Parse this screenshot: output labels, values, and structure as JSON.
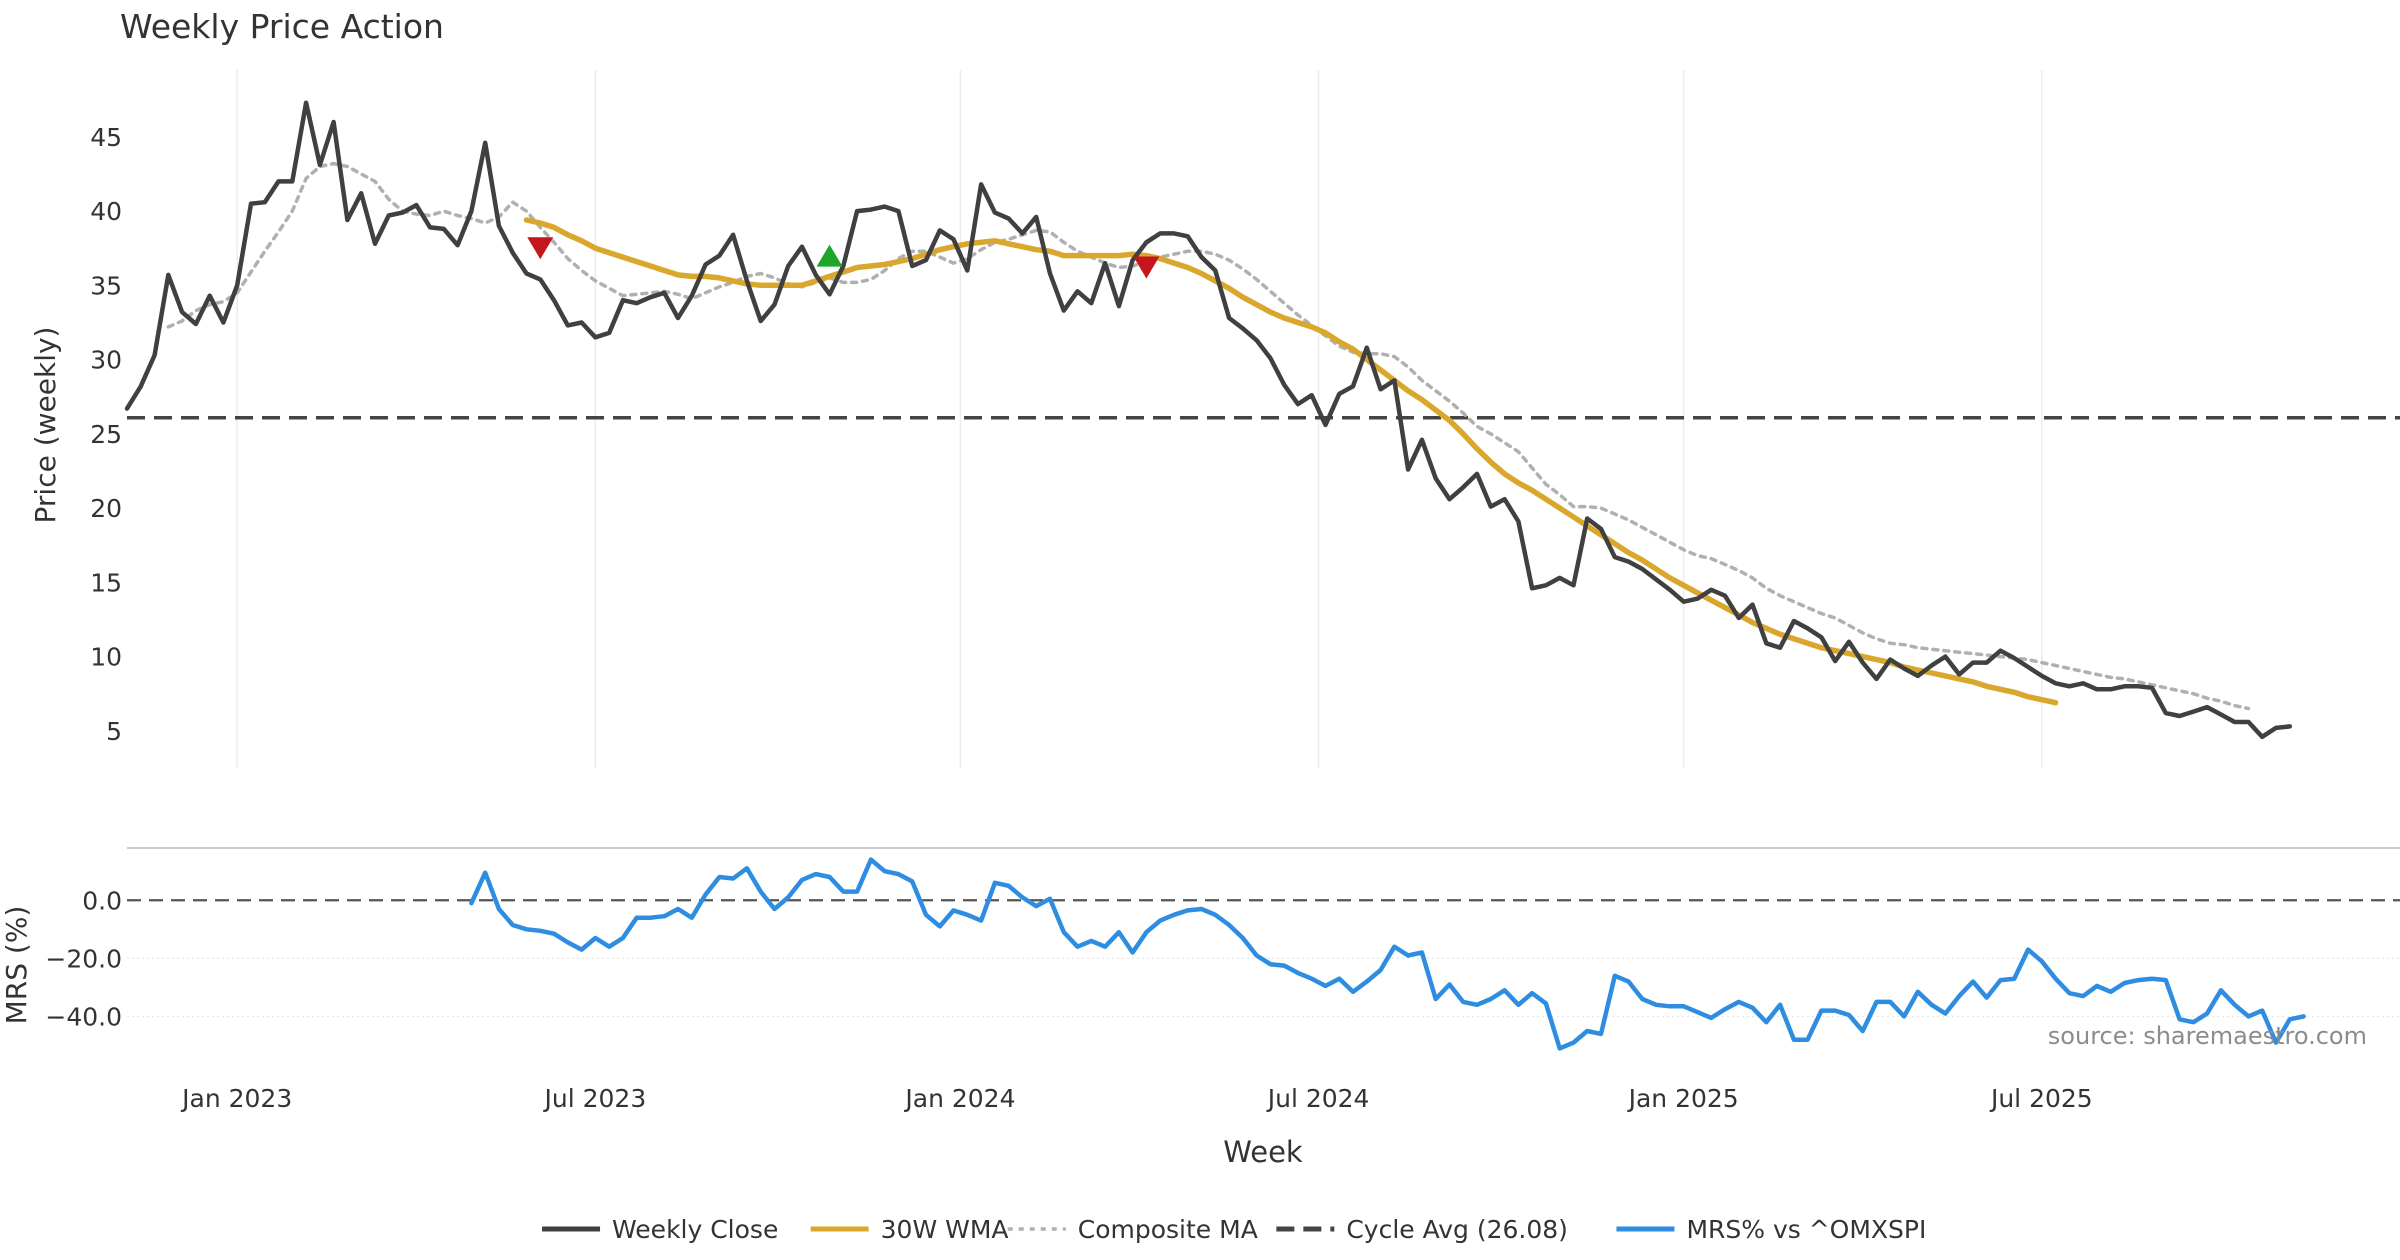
{
  "chart_data": [
    {
      "type": "line",
      "panel": "price",
      "title": "Weekly Price Action",
      "ylabel": "Price (weekly)",
      "ylim": [
        2.5,
        49.5
      ],
      "yticks": [
        "5",
        "10",
        "15",
        "20",
        "25",
        "30",
        "35",
        "40",
        "45"
      ],
      "ytick_values": [
        5,
        10,
        15,
        20,
        25,
        30,
        35,
        40,
        45
      ],
      "x_start_week": -10,
      "x_end_week": 155,
      "series": [
        {
          "name": "Weekly Close",
          "color": "#404040",
          "start_week": -10,
          "values": [
            26.7,
            28.2,
            30.3,
            35.7,
            33.2,
            32.4,
            34.3,
            32.5,
            35.0,
            40.5,
            40.6,
            42.0,
            42.0,
            47.3,
            43.1,
            46.0,
            39.4,
            41.2,
            37.8,
            39.7,
            39.9,
            40.4,
            38.9,
            38.8,
            37.7,
            40.0,
            44.6,
            39.0,
            37.2,
            35.8,
            35.4,
            34.0,
            32.3,
            32.5,
            31.5,
            31.8,
            34.0,
            33.8,
            34.2,
            34.5,
            32.8,
            34.3,
            36.4,
            37.0,
            38.4,
            35.3,
            32.6,
            33.7,
            36.3,
            37.6,
            35.7,
            34.4,
            36.3,
            40.0,
            40.1,
            40.3,
            40.0,
            36.3,
            36.7,
            38.7,
            38.1,
            36.0,
            41.8,
            39.9,
            39.5,
            38.5,
            39.6,
            35.8,
            33.3,
            34.6,
            33.8,
            36.5,
            33.6,
            36.7,
            37.9,
            38.5,
            38.5,
            38.3,
            36.9,
            36.0,
            32.8,
            32.1,
            31.3,
            30.1,
            28.3,
            27.0,
            27.6,
            25.6,
            27.7,
            28.2,
            30.8,
            28.0,
            28.6,
            22.6,
            24.6,
            22.0,
            20.6,
            21.4,
            22.3,
            20.1,
            20.6,
            19.1,
            14.6,
            14.8,
            15.3,
            14.8,
            19.3,
            18.6,
            16.7,
            16.4,
            15.9,
            15.2,
            14.5,
            13.7,
            13.9,
            14.5,
            14.1,
            12.6,
            13.5,
            10.9,
            10.6,
            12.4,
            11.9,
            11.3,
            9.7,
            11.0,
            9.6,
            8.5,
            9.8,
            9.2,
            8.7,
            9.4,
            10.0,
            8.8,
            9.6,
            9.6,
            10.4,
            9.9,
            9.3,
            8.7,
            8.2,
            8.0,
            8.2,
            7.8,
            7.8,
            8.0,
            8.0,
            7.9,
            6.2,
            6.0,
            6.3,
            6.6,
            6.1,
            5.6,
            5.6,
            4.6,
            5.2,
            5.3
          ]
        },
        {
          "name": "30W WMA",
          "color": "#d9a72c",
          "start_week": 19,
          "values": [
            39.4,
            39.2,
            38.9,
            38.4,
            38.0,
            37.5,
            37.2,
            36.9,
            36.6,
            36.3,
            36.0,
            35.7,
            35.6,
            35.6,
            35.5,
            35.3,
            35.1,
            35.0,
            35.0,
            35.0,
            35.0,
            35.3,
            35.6,
            35.9,
            36.2,
            36.3,
            36.4,
            36.6,
            36.8,
            37.1,
            37.4,
            37.6,
            37.8,
            37.9,
            38.0,
            37.8,
            37.6,
            37.4,
            37.3,
            37.0,
            37.0,
            37.0,
            37.0,
            37.0,
            37.1,
            37.0,
            36.8,
            36.5,
            36.2,
            35.8,
            35.3,
            34.8,
            34.2,
            33.7,
            33.2,
            32.8,
            32.5,
            32.2,
            31.8,
            31.2,
            30.7,
            30.0,
            29.3,
            28.6,
            27.9,
            27.3,
            26.6,
            25.9,
            25.0,
            24.0,
            23.1,
            22.3,
            21.7,
            21.2,
            20.6,
            20.0,
            19.4,
            18.8,
            18.2,
            17.6,
            17.0,
            16.5,
            15.9,
            15.3,
            14.8,
            14.3,
            13.8,
            13.3,
            12.8,
            12.3,
            11.9,
            11.5,
            11.2,
            10.9,
            10.6,
            10.4,
            10.2,
            10.0,
            9.8,
            9.6,
            9.3,
            9.1,
            8.9,
            8.7,
            8.5,
            8.3,
            8.0,
            7.8,
            7.6,
            7.3,
            7.1,
            6.9
          ]
        },
        {
          "name": "Composite MA",
          "color": "#b0b0b0",
          "start_week": -7,
          "values": [
            32.2,
            32.6,
            33.3,
            33.7,
            33.9,
            34.5,
            35.9,
            37.3,
            38.6,
            40.0,
            42.2,
            43.0,
            43.2,
            43.0,
            42.5,
            42.0,
            40.8,
            40.0,
            39.8,
            39.7,
            40.0,
            39.7,
            39.5,
            39.2,
            39.6,
            40.6,
            40.0,
            38.9,
            37.9,
            36.8,
            36.0,
            35.3,
            34.8,
            34.3,
            34.4,
            34.5,
            34.6,
            34.4,
            34.1,
            34.5,
            34.9,
            35.2,
            35.6,
            35.8,
            35.5,
            35.1,
            34.9,
            35.2,
            35.5,
            35.2,
            35.2,
            35.4,
            36.0,
            36.8,
            37.3,
            37.3,
            36.9,
            36.5,
            36.8,
            37.4,
            37.9,
            38.1,
            38.4,
            38.7,
            38.6,
            37.9,
            37.3,
            36.9,
            36.5,
            36.2,
            36.3,
            36.6,
            36.9,
            37.1,
            37.3,
            37.3,
            37.1,
            36.7,
            36.1,
            35.4,
            34.6,
            33.8,
            33.0,
            32.3,
            31.6,
            30.9,
            30.5,
            30.4,
            30.4,
            30.2,
            29.5,
            28.6,
            27.9,
            27.2,
            26.4,
            25.5,
            25.0,
            24.4,
            23.8,
            22.7,
            21.6,
            20.9,
            20.1,
            20.1,
            20.0,
            19.6,
            19.2,
            18.7,
            18.2,
            17.7,
            17.2,
            16.8,
            16.6,
            16.2,
            15.8,
            15.3,
            14.6,
            14.1,
            13.7,
            13.3,
            12.9,
            12.6,
            12.1,
            11.6,
            11.2,
            10.9,
            10.8,
            10.6,
            10.5,
            10.4,
            10.3,
            10.2,
            10.1,
            10.0,
            9.9,
            9.8,
            9.6,
            9.4,
            9.2,
            9.0,
            8.8,
            8.6,
            8.5,
            8.3,
            8.1,
            7.9,
            7.7,
            7.5,
            7.2,
            7.0,
            6.7,
            6.5
          ]
        }
      ],
      "hline": {
        "name": "Cycle Avg (26.08)",
        "value": 26.08,
        "color": "#444444"
      },
      "markers": [
        {
          "kind": "sell",
          "week": 20,
          "value": 37.5,
          "color": "#c4161c"
        },
        {
          "kind": "buy",
          "week": 41,
          "value": 37.0,
          "color": "#1ea52a"
        },
        {
          "kind": "sell",
          "week": 64,
          "value": 36.2,
          "color": "#c4161c"
        }
      ],
      "x_ticks": [
        {
          "label": "Jan 2023",
          "week": -2
        },
        {
          "label": "Jul 2023",
          "week": 24
        },
        {
          "label": "Jan 2024",
          "week": 50.5
        },
        {
          "label": "Jul 2024",
          "week": 76.5
        },
        {
          "label": "Jan 2025",
          "week": 103
        },
        {
          "label": "Jul 2025",
          "week": 129
        }
      ]
    },
    {
      "type": "line",
      "panel": "mrs",
      "ylabel": "MRS (%)",
      "xlabel": "Week",
      "ylim": [
        -55,
        18
      ],
      "yticks": [
        "0.0",
        "−20.0",
        "−40.0"
      ],
      "ytick_values": [
        0,
        -20,
        -40
      ],
      "zero_line": 0,
      "series": [
        {
          "name": "MRS% vs ^OMXSPI",
          "color": "#2e8de0",
          "start_week": 15,
          "values": [
            -1.0,
            9.5,
            -3.0,
            -8.5,
            -10.0,
            -10.5,
            -11.5,
            -14.5,
            -17.0,
            -13.0,
            -16.0,
            -13.0,
            -6.0,
            -6.0,
            -5.5,
            -3.0,
            -6.0,
            2.0,
            8.0,
            7.5,
            11.0,
            3.0,
            -3.0,
            1.0,
            7.0,
            9.0,
            8.0,
            3.0,
            3.0,
            14.0,
            10.0,
            9.0,
            6.5,
            -5.0,
            -9.0,
            -3.5,
            -5.0,
            -7.0,
            6.0,
            5.0,
            1.0,
            -2.0,
            0.5,
            -11.0,
            -16.0,
            -14.0,
            -16.0,
            -11.0,
            -18.0,
            -11.0,
            -7.0,
            -5.0,
            -3.5,
            -3.0,
            -5.0,
            -8.5,
            -13.0,
            -19.0,
            -22.0,
            -22.5,
            -25.0,
            -27.0,
            -29.5,
            -27.0,
            -31.5,
            -28.0,
            -24.0,
            -16.0,
            -19.0,
            -18.0,
            -34.0,
            -29.0,
            -35.0,
            -36.0,
            -34.0,
            -31.0,
            -36.0,
            -32.0,
            -35.5,
            -51.0,
            -49.0,
            -45.0,
            -46.0,
            -26.0,
            -28.0,
            -34.0,
            -36.0,
            -36.5,
            -36.5,
            -38.5,
            -40.5,
            -37.5,
            -35.0,
            -37.0,
            -42.0,
            -36.0,
            -48.0,
            -48.0,
            -38.0,
            -38.0,
            -39.5,
            -45.0,
            -35.0,
            -35.0,
            -40.0,
            -31.5,
            -36.0,
            -39.0,
            -33.0,
            -28.0,
            -33.5,
            -27.5,
            -27.0,
            -17.0,
            -21.0,
            -27.0,
            -32.0,
            -33.0,
            -29.5,
            -31.5,
            -28.5,
            -27.5,
            -27.0,
            -27.5,
            -41.0,
            -42.0,
            -39.0,
            -31.0,
            -36.0,
            -40.0,
            -38.0,
            -49.0,
            -41.0,
            -40.0
          ]
        }
      ],
      "annotation": "source: sharemaestro.com"
    }
  ],
  "legend": [
    {
      "label": "Weekly Close",
      "style": "solid",
      "color": "#404040"
    },
    {
      "label": "30W WMA",
      "style": "solid",
      "color": "#d9a72c"
    },
    {
      "label": "Composite MA",
      "style": "dotted",
      "color": "#b0b0b0"
    },
    {
      "label": "Cycle Avg (26.08)",
      "style": "dashed",
      "color": "#444444"
    },
    {
      "label": "MRS% vs ^OMXSPI",
      "style": "solid",
      "color": "#2e8de0"
    }
  ]
}
